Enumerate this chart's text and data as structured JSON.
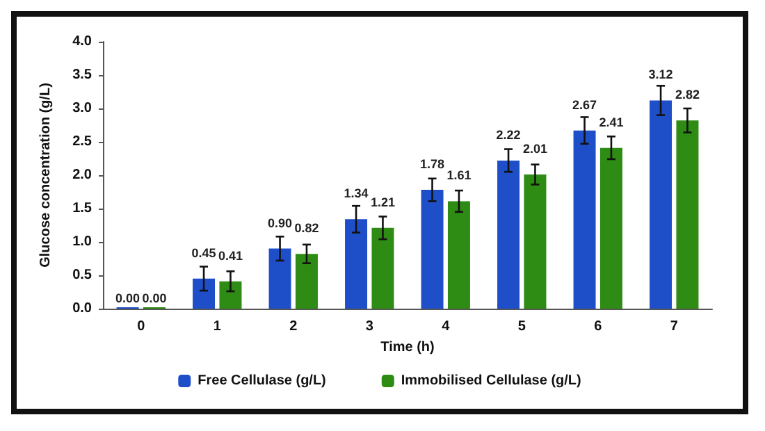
{
  "chart_data": {
    "type": "bar",
    "xlabel": "Time (h)",
    "ylabel": "Glucose concentration (g/L)",
    "categories": [
      "0",
      "1",
      "2",
      "3",
      "4",
      "5",
      "6",
      "7"
    ],
    "series": [
      {
        "name": "Free Cellulase (g/L)",
        "color": "#1f4fc8",
        "values": [
          0,
          0.45,
          0.9,
          1.34,
          1.78,
          2.22,
          2.67,
          3.12
        ],
        "errors": [
          null,
          0.18,
          0.18,
          0.2,
          0.17,
          0.17,
          0.2,
          0.22
        ],
        "value_labels": [
          "0.00",
          "0.45",
          "0.90",
          "1.34",
          "1.78",
          "2.22",
          "2.67",
          "3.12"
        ]
      },
      {
        "name": "Immobilised Cellulase (g/L)",
        "color": "#2e8b14",
        "values": [
          0,
          0.41,
          0.82,
          1.21,
          1.61,
          2.01,
          2.41,
          2.82
        ],
        "errors": [
          null,
          0.15,
          0.14,
          0.17,
          0.16,
          0.15,
          0.17,
          0.18
        ],
        "value_labels": [
          "0.00",
          "0.41",
          "0.82",
          "1.21",
          "1.61",
          "2.01",
          "2.41",
          "2.82"
        ]
      }
    ],
    "ylim": [
      0,
      4
    ],
    "yticks": [
      {
        "value": 0,
        "label": "0.0"
      },
      0.5,
      {
        "value": 1,
        "label": "1.0"
      },
      1.5,
      {
        "value": 2,
        "label": "2.0"
      },
      2.5,
      {
        "value": 3,
        "label": "3.0"
      },
      3.5,
      {
        "value": 4,
        "label": "4.0"
      }
    ],
    "grid": false,
    "legend": "bottom"
  }
}
